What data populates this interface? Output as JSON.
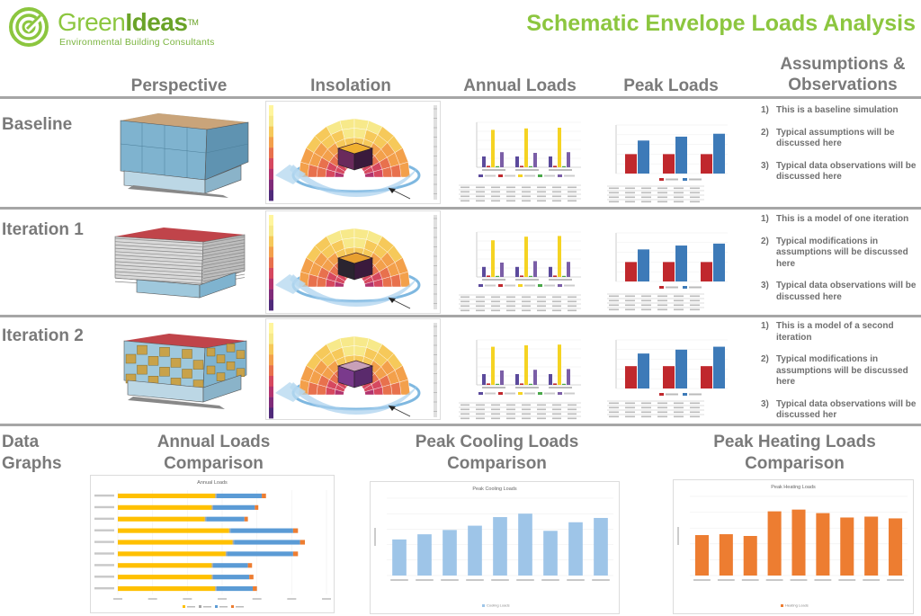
{
  "brand": {
    "name_light": "Green",
    "name_bold": "Ideas",
    "trademark": "TM",
    "tagline": "Environmental Building Consultants",
    "green": "#8cc63f"
  },
  "title": "Schematic Envelope Loads Analysis",
  "columns": {
    "perspective": "Perspective",
    "insolation": "Insolation",
    "annual": "Annual Loads",
    "peak": "Peak Loads",
    "assumptions_line1": "Assumptions &",
    "assumptions_line2": "Observations"
  },
  "rows": [
    {
      "label": "Baseline",
      "notes": [
        {
          "num": "1)",
          "text": "This is a baseline simulation"
        },
        {
          "num": "2)",
          "text": "Typical assumptions will be discussed here"
        },
        {
          "num": "3)",
          "text": "Typical data observations will be discussed here"
        }
      ]
    },
    {
      "label": "Iteration 1",
      "notes": [
        {
          "num": "1)",
          "text": "This is a model of one iteration"
        },
        {
          "num": "2)",
          "text": "Typical modifications in assumptions will be discussed here"
        },
        {
          "num": "3)",
          "text": "Typical data observations will be discussed here"
        }
      ]
    },
    {
      "label": "Iteration 2",
      "notes": [
        {
          "num": "1)",
          "text": "This is a model of a second iteration"
        },
        {
          "num": "2)",
          "text": "Typical modifications in assumptions will be discussed here"
        },
        {
          "num": "3)",
          "text": "Typical data observations will be discussed her"
        }
      ]
    }
  ],
  "data_graphs": {
    "label_line1": "Data",
    "label_line2": "Graphs",
    "annual_title_line1": "Annual Loads",
    "annual_title_line2": "Comparison",
    "cooling_title_line1": "Peak Cooling Loads",
    "cooling_title_line2": "Comparison",
    "heating_title_line1": "Peak Heating Loads",
    "heating_title_line2": "Comparison"
  },
  "colors": {
    "cooling": "#c0282d",
    "heating": "#3d7ab8",
    "yellow": "#f5d323",
    "purple": "#5b4a9c",
    "light_blue": "#9ec5e8",
    "orange": "#ed7d31",
    "bar_yellow": "#ffc000",
    "bar_blue": "#5b9bd5",
    "bar_red": "#e15759"
  },
  "chart_data": [
    {
      "type": "bar",
      "title": "Annual Loads",
      "orientation": "horizontal-stacked",
      "categories": [
        "Flex 1",
        "Flex 2",
        "Flex 3",
        "As Designed 1",
        "As Designed 2",
        "As Designed 3",
        "WWR 1",
        "WWR 2",
        "WWR 3"
      ],
      "series": [
        {
          "name": "Fans",
          "values": [
            1400000,
            1350000,
            1350000,
            1550000,
            1650000,
            1600000,
            1250000,
            1350000,
            1400000
          ]
        },
        {
          "name": "Lighting",
          "values": [
            20000,
            20000,
            20000,
            20000,
            20000,
            20000,
            20000,
            20000,
            20000
          ]
        },
        {
          "name": "Cooling",
          "values": [
            520000,
            520000,
            500000,
            950000,
            950000,
            900000,
            550000,
            600000,
            650000
          ]
        },
        {
          "name": "Heating",
          "values": [
            60000,
            60000,
            60000,
            70000,
            70000,
            70000,
            50000,
            50000,
            60000
          ]
        }
      ],
      "xlim": [
        0,
        3000000
      ]
    },
    {
      "type": "bar",
      "title": "Peak Cooling Loads",
      "categories": [
        "Flex 1",
        "Flex 2",
        "Flex 3",
        "As Designed 1",
        "As Designed 2",
        "As Designed 3",
        "WWR 1",
        "WWR 2",
        "WWR 3"
      ],
      "series": [
        {
          "name": "Cooling Loads",
          "values": [
            42,
            48,
            53,
            58,
            68,
            72,
            52,
            62,
            67
          ]
        }
      ],
      "ylim": [
        0,
        90
      ]
    },
    {
      "type": "bar",
      "title": "Peak Heating Loads",
      "categories": [
        "Flex 1",
        "Flex 2",
        "Flex 3",
        "As Designed 1",
        "As Designed 2",
        "As Designed 3",
        "WWR 1",
        "WWR 2",
        "WWR 3"
      ],
      "series": [
        {
          "name": "Heating Loads",
          "values": [
            46,
            47,
            45,
            73,
            75,
            71,
            66,
            67,
            65
          ]
        }
      ],
      "ylim": [
        0,
        90
      ]
    }
  ],
  "row_peak_charts": [
    {
      "cooling": [
        2,
        2,
        2
      ],
      "heating": [
        3.4,
        3.8,
        4.1
      ]
    },
    {
      "cooling": [
        2,
        2,
        2
      ],
      "heating": [
        3.3,
        3.7,
        3.9
      ]
    },
    {
      "cooling": [
        2.3,
        2.3,
        2.3
      ],
      "heating": [
        3.6,
        4.0,
        4.3
      ]
    }
  ],
  "row_annual_charts": [
    {
      "values": [
        [
          1.5,
          0.2,
          5.2,
          0.15,
          2.1
        ],
        [
          1.5,
          0.2,
          5.4,
          0.15,
          2.0
        ],
        [
          1.5,
          0.2,
          5.5,
          0.15,
          2.1
        ]
      ]
    },
    {
      "values": [
        [
          1.4,
          0.2,
          5.1,
          0.15,
          2.0
        ],
        [
          1.4,
          0.2,
          5.6,
          0.15,
          2.2
        ],
        [
          1.4,
          0.2,
          5.7,
          0.15,
          2.1
        ]
      ]
    },
    {
      "values": [
        [
          1.5,
          0.2,
          5.3,
          0.15,
          2.0
        ],
        [
          1.5,
          0.2,
          5.5,
          0.15,
          2.1
        ],
        [
          1.5,
          0.2,
          5.6,
          0.15,
          2.2
        ]
      ]
    }
  ]
}
